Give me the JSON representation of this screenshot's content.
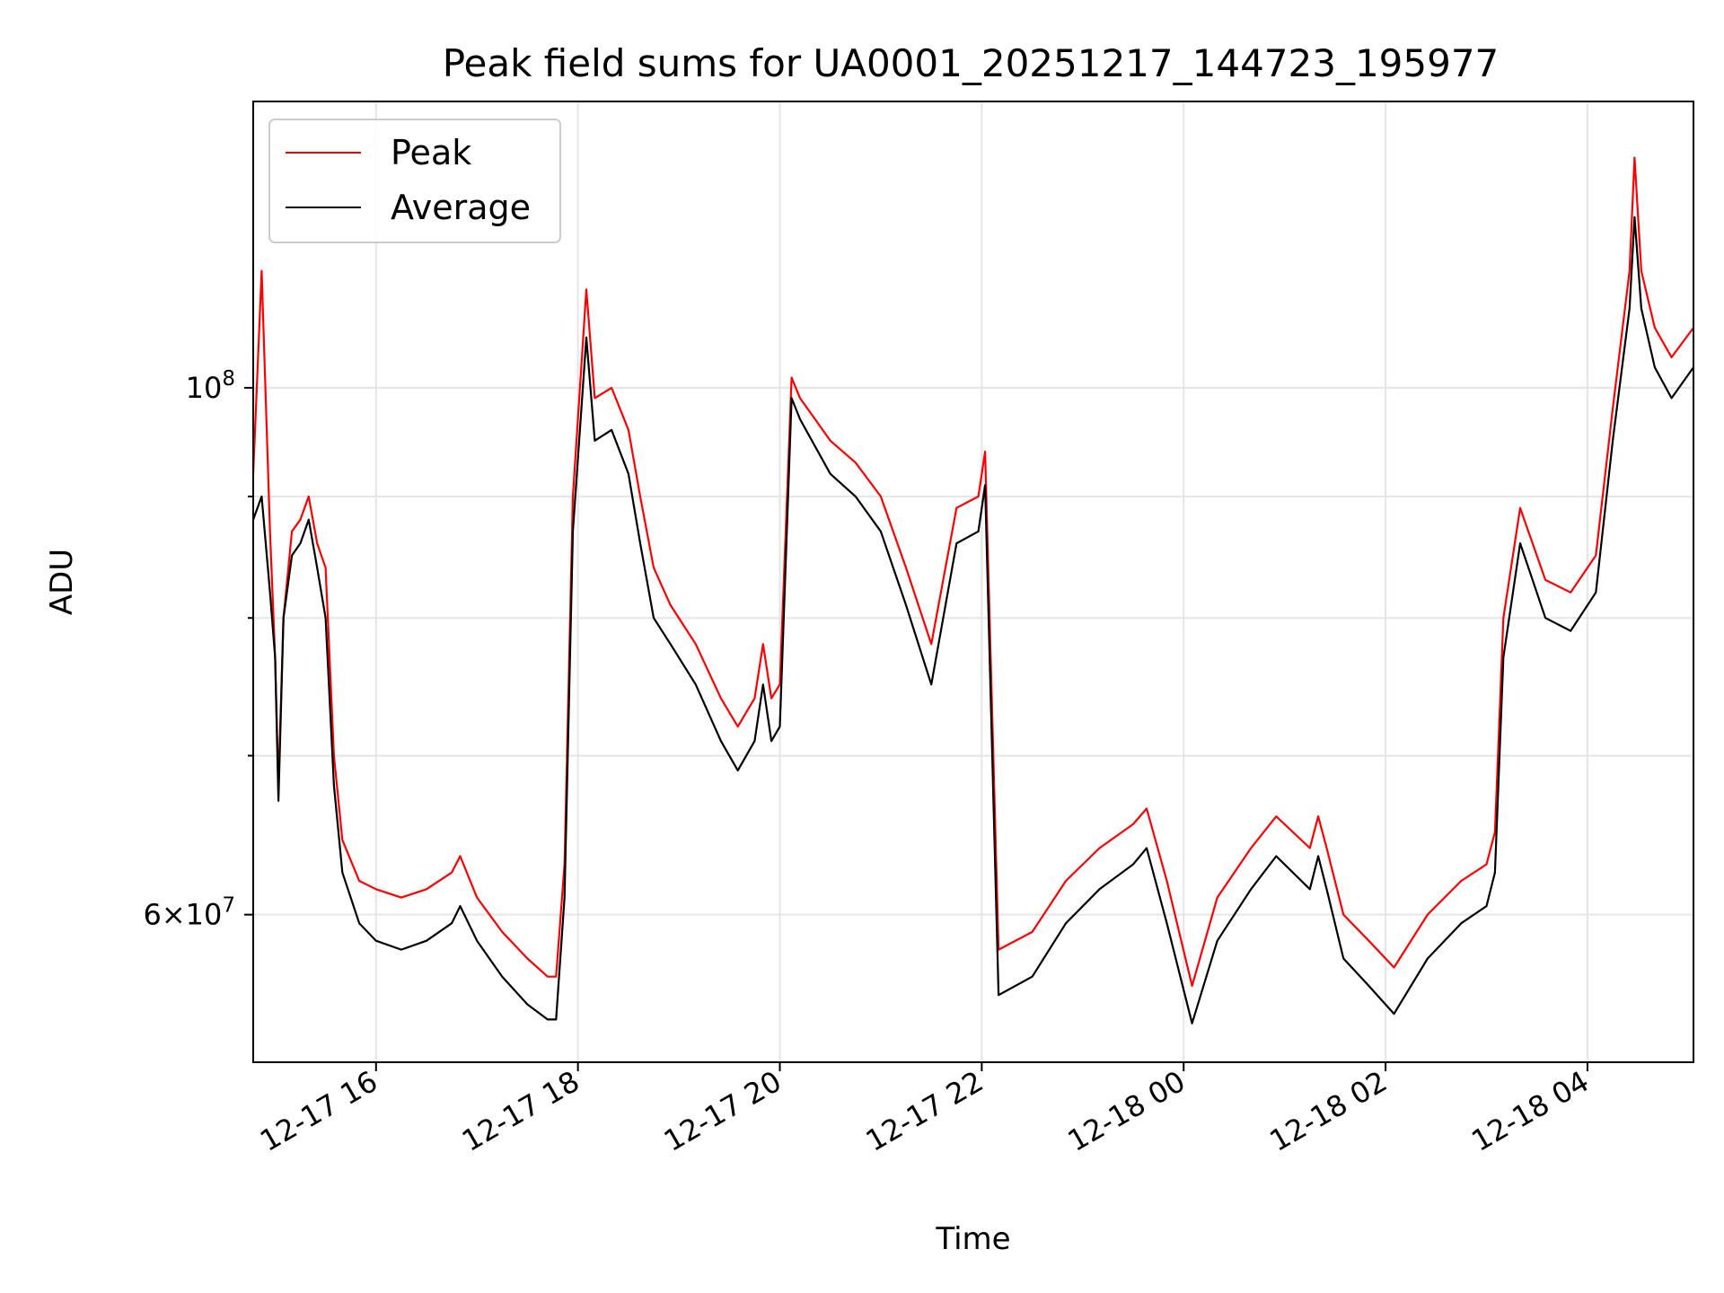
{
  "chart_data": {
    "type": "line",
    "title": "Peak field sums for UA0001_20251217_144723_195977",
    "xlabel": "Time",
    "ylabel": "ADU",
    "yscale": "log",
    "ylim": [
      52000000,
      132000000
    ],
    "xlim": [
      "2025-12-17 14:47",
      "2025-12-18 05:03"
    ],
    "grid": true,
    "legend_position": "top-left",
    "x_ticks": [
      {
        "value": "2025-12-17 16:00",
        "label": "12-17 16"
      },
      {
        "value": "2025-12-17 18:00",
        "label": "12-17 18"
      },
      {
        "value": "2025-12-17 20:00",
        "label": "12-17 20"
      },
      {
        "value": "2025-12-17 22:00",
        "label": "12-17 22"
      },
      {
        "value": "2025-12-18 00:00",
        "label": "12-18 00"
      },
      {
        "value": "2025-12-18 02:00",
        "label": "12-18 02"
      },
      {
        "value": "2025-12-18 04:00",
        "label": "12-18 04"
      }
    ],
    "y_ticks_major": [
      {
        "value": 60000000,
        "base": "6",
        "exp": "7"
      },
      {
        "value": 100000000,
        "base": "",
        "exp": "8"
      }
    ],
    "y_ticks_minor": [
      70000000,
      80000000,
      90000000
    ],
    "series": [
      {
        "name": "Peak",
        "color": "#ff0000",
        "x": [
          "2025-12-17 14:47",
          "2025-12-17 14:52",
          "2025-12-17 14:57",
          "2025-12-17 15:00",
          "2025-12-17 15:02",
          "2025-12-17 15:05",
          "2025-12-17 15:10",
          "2025-12-17 15:15",
          "2025-12-17 15:20",
          "2025-12-17 15:25",
          "2025-12-17 15:30",
          "2025-12-17 15:35",
          "2025-12-17 15:40",
          "2025-12-17 15:50",
          "2025-12-17 16:00",
          "2025-12-17 16:15",
          "2025-12-17 16:30",
          "2025-12-17 16:45",
          "2025-12-17 16:50",
          "2025-12-17 17:00",
          "2025-12-17 17:15",
          "2025-12-17 17:30",
          "2025-12-17 17:42",
          "2025-12-17 17:47",
          "2025-12-17 17:52",
          "2025-12-17 17:57",
          "2025-12-17 18:05",
          "2025-12-17 18:10",
          "2025-12-17 18:20",
          "2025-12-17 18:30",
          "2025-12-17 18:37",
          "2025-12-17 18:45",
          "2025-12-17 18:55",
          "2025-12-17 19:10",
          "2025-12-17 19:25",
          "2025-12-17 19:35",
          "2025-12-17 19:45",
          "2025-12-17 19:50",
          "2025-12-17 19:55",
          "2025-12-17 20:00",
          "2025-12-17 20:07",
          "2025-12-17 20:12",
          "2025-12-17 20:30",
          "2025-12-17 20:45",
          "2025-12-17 21:00",
          "2025-12-17 21:15",
          "2025-12-17 21:30",
          "2025-12-17 21:45",
          "2025-12-17 21:58",
          "2025-12-17 22:02",
          "2025-12-17 22:10",
          "2025-12-17 22:30",
          "2025-12-17 22:50",
          "2025-12-17 23:10",
          "2025-12-17 23:30",
          "2025-12-17 23:38",
          "2025-12-17 23:50",
          "2025-12-18 00:05",
          "2025-12-18 00:20",
          "2025-12-18 00:40",
          "2025-12-18 00:55",
          "2025-12-18 01:15",
          "2025-12-18 01:20",
          "2025-12-18 01:25",
          "2025-12-18 01:35",
          "2025-12-18 01:50",
          "2025-12-18 02:05",
          "2025-12-18 02:25",
          "2025-12-18 02:45",
          "2025-12-18 03:00",
          "2025-12-18 03:05",
          "2025-12-18 03:10",
          "2025-12-18 03:20",
          "2025-12-18 03:35",
          "2025-12-18 03:50",
          "2025-12-18 04:05",
          "2025-12-18 04:15",
          "2025-12-18 04:25",
          "2025-12-18 04:28",
          "2025-12-18 04:32",
          "2025-12-18 04:40",
          "2025-12-18 04:50",
          "2025-12-18 05:03"
        ],
        "values": [
          92000000,
          112000000,
          87000000,
          77000000,
          68000000,
          80000000,
          87000000,
          88000000,
          90000000,
          86000000,
          84000000,
          70000000,
          64500000,
          62000000,
          61500000,
          61000000,
          61500000,
          62500000,
          63500000,
          61000000,
          59000000,
          57500000,
          56500000,
          56500000,
          63000000,
          90000000,
          110000000,
          99000000,
          100000000,
          96000000,
          90000000,
          84000000,
          81000000,
          78000000,
          74000000,
          72000000,
          74000000,
          78000000,
          74000000,
          75000000,
          101000000,
          99000000,
          95000000,
          93000000,
          90000000,
          84000000,
          78000000,
          89000000,
          90000000,
          94000000,
          58000000,
          59000000,
          62000000,
          64000000,
          65500000,
          66500000,
          62000000,
          56000000,
          61000000,
          64000000,
          66000000,
          64000000,
          66000000,
          64000000,
          60000000,
          58500000,
          57000000,
          60000000,
          62000000,
          63000000,
          65000000,
          80000000,
          89000000,
          83000000,
          82000000,
          85000000,
          98000000,
          112000000,
          125000000,
          112000000,
          106000000,
          103000000,
          106000000
        ]
      },
      {
        "name": "Average",
        "color": "#000000",
        "x": [
          "2025-12-17 14:47",
          "2025-12-17 14:52",
          "2025-12-17 14:57",
          "2025-12-17 15:00",
          "2025-12-17 15:02",
          "2025-12-17 15:05",
          "2025-12-17 15:10",
          "2025-12-17 15:15",
          "2025-12-17 15:20",
          "2025-12-17 15:25",
          "2025-12-17 15:30",
          "2025-12-17 15:35",
          "2025-12-17 15:40",
          "2025-12-17 15:50",
          "2025-12-17 16:00",
          "2025-12-17 16:15",
          "2025-12-17 16:30",
          "2025-12-17 16:45",
          "2025-12-17 16:50",
          "2025-12-17 17:00",
          "2025-12-17 17:15",
          "2025-12-17 17:30",
          "2025-12-17 17:42",
          "2025-12-17 17:47",
          "2025-12-17 17:52",
          "2025-12-17 17:57",
          "2025-12-17 18:05",
          "2025-12-17 18:10",
          "2025-12-17 18:20",
          "2025-12-17 18:30",
          "2025-12-17 18:37",
          "2025-12-17 18:45",
          "2025-12-17 18:55",
          "2025-12-17 19:10",
          "2025-12-17 19:25",
          "2025-12-17 19:35",
          "2025-12-17 19:45",
          "2025-12-17 19:50",
          "2025-12-17 19:55",
          "2025-12-17 20:00",
          "2025-12-17 20:07",
          "2025-12-17 20:12",
          "2025-12-17 20:30",
          "2025-12-17 20:45",
          "2025-12-17 21:00",
          "2025-12-17 21:15",
          "2025-12-17 21:30",
          "2025-12-17 21:45",
          "2025-12-17 21:58",
          "2025-12-17 22:02",
          "2025-12-17 22:10",
          "2025-12-17 22:30",
          "2025-12-17 22:50",
          "2025-12-17 23:10",
          "2025-12-17 23:30",
          "2025-12-17 23:38",
          "2025-12-17 23:50",
          "2025-12-18 00:05",
          "2025-12-18 00:20",
          "2025-12-18 00:40",
          "2025-12-18 00:55",
          "2025-12-18 01:15",
          "2025-12-18 01:20",
          "2025-12-18 01:25",
          "2025-12-18 01:35",
          "2025-12-18 01:50",
          "2025-12-18 02:05",
          "2025-12-18 02:25",
          "2025-12-18 02:45",
          "2025-12-18 03:00",
          "2025-12-18 03:05",
          "2025-12-18 03:10",
          "2025-12-18 03:20",
          "2025-12-18 03:35",
          "2025-12-18 03:50",
          "2025-12-18 04:05",
          "2025-12-18 04:15",
          "2025-12-18 04:25",
          "2025-12-18 04:28",
          "2025-12-18 04:32",
          "2025-12-18 04:40",
          "2025-12-18 04:50",
          "2025-12-18 05:03"
        ],
        "values": [
          88000000,
          90000000,
          82000000,
          77000000,
          67000000,
          80000000,
          85000000,
          86000000,
          88000000,
          84000000,
          80000000,
          68000000,
          62500000,
          59500000,
          58500000,
          58000000,
          58500000,
          59500000,
          60500000,
          58500000,
          56500000,
          55000000,
          54200000,
          54200000,
          61000000,
          87000000,
          105000000,
          95000000,
          96000000,
          92000000,
          86000000,
          80000000,
          78000000,
          75000000,
          71000000,
          69000000,
          71000000,
          75000000,
          71000000,
          72000000,
          99000000,
          97000000,
          92000000,
          90000000,
          87000000,
          81000000,
          75000000,
          86000000,
          87000000,
          91000000,
          55500000,
          56500000,
          59500000,
          61500000,
          63000000,
          64000000,
          59500000,
          54000000,
          58500000,
          61500000,
          63500000,
          61500000,
          63500000,
          61500000,
          57500000,
          56000000,
          54500000,
          57500000,
          59500000,
          60500000,
          62500000,
          77000000,
          86000000,
          80000000,
          79000000,
          82000000,
          95000000,
          108000000,
          118000000,
          108000000,
          102000000,
          99000000,
          102000000
        ]
      }
    ]
  }
}
